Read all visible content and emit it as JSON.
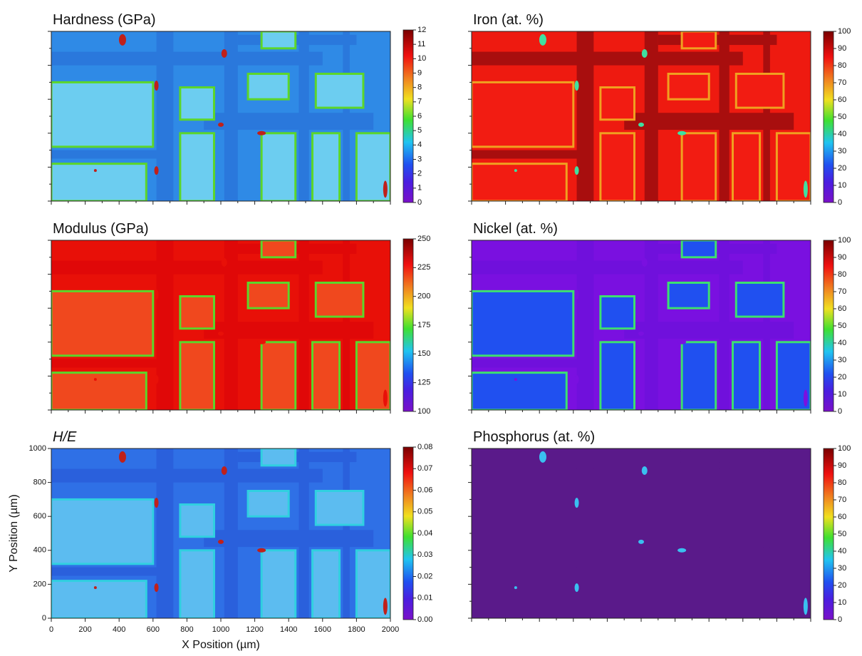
{
  "chart_data": [
    {
      "type": "heatmap",
      "title": "Hardness (GPa)",
      "zlim": [
        0,
        12
      ],
      "zticks": [
        0,
        1,
        2,
        3,
        4,
        5,
        6,
        7,
        8,
        9,
        10,
        11,
        12
      ]
    },
    {
      "type": "heatmap",
      "title": "Iron (at. %)",
      "zlim": [
        0,
        100
      ],
      "zticks": [
        0,
        10,
        20,
        30,
        40,
        50,
        60,
        70,
        80,
        90,
        100
      ]
    },
    {
      "type": "heatmap",
      "title": "Modulus (GPa)",
      "zlim": [
        100,
        250
      ],
      "zticks": [
        100,
        125,
        150,
        175,
        200,
        225,
        250
      ]
    },
    {
      "type": "heatmap",
      "title": "Nickel (at. %)",
      "zlim": [
        0,
        100
      ],
      "zticks": [
        0,
        10,
        20,
        30,
        40,
        50,
        60,
        70,
        80,
        90,
        100
      ]
    },
    {
      "type": "heatmap",
      "title": "H/E",
      "zlim": [
        0,
        0.08
      ],
      "zticks": [
        {
          "value": 0,
          "label": "0.00"
        },
        0.01,
        0.02,
        0.03,
        0.04,
        0.05,
        0.06,
        0.07,
        0.08
      ],
      "xlabel": "X Position (µm)",
      "ylabel": "Y Position (µm)",
      "xlim": [
        0,
        2000
      ],
      "ylim": [
        0,
        1000
      ],
      "xticks": [
        0,
        200,
        400,
        600,
        800,
        1000,
        1200,
        1400,
        1600,
        1800,
        2000
      ],
      "yticks": [
        0,
        200,
        400,
        600,
        800,
        1000
      ]
    },
    {
      "type": "heatmap",
      "title": "Phosphorus (at. %)",
      "zlim": [
        0,
        100
      ],
      "zticks": [
        0,
        10,
        20,
        30,
        40,
        50,
        60,
        70,
        80,
        90,
        100
      ]
    }
  ]
}
